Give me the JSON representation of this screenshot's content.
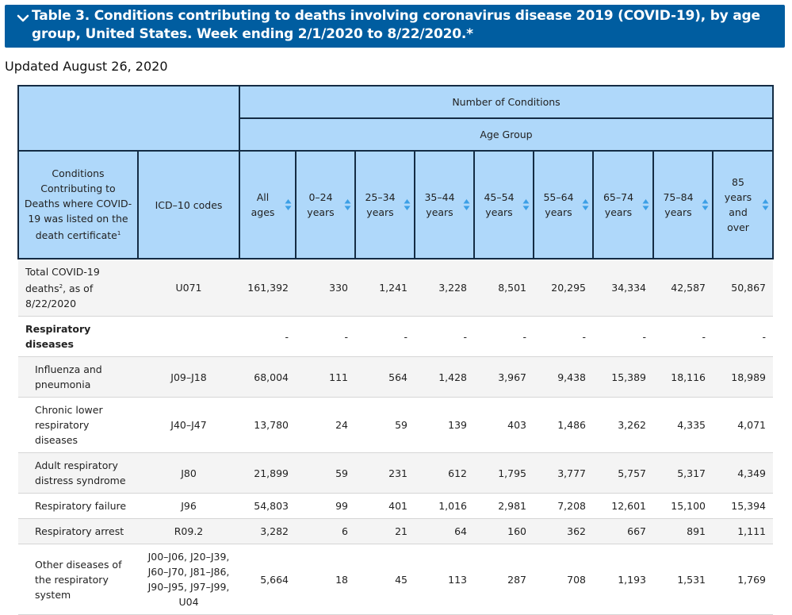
{
  "header": {
    "title": "Table 3. Conditions contributing to deaths involving coronavirus disease 2019 (COVID-19), by age group, United States. Week ending 2/1/2020 to 8/22/2020.*",
    "updated": "Updated August 26, 2020"
  },
  "table": {
    "group_header": "Number of Conditions",
    "subgroup_header": "Age Group",
    "col_condition": "Conditions Contributing to Deaths where COVID-19 was listed on the death certificate",
    "col_condition_sup": "1",
    "col_icd": "ICD–10 codes",
    "age_cols": [
      "All ages",
      "0–24 years",
      "25–34 years",
      "35–44 years",
      "45–54 years",
      "55–64 years",
      "65–74 years",
      "75–84 years",
      "85 years and over"
    ],
    "rows": [
      {
        "cond": "Total COVID-19 deaths",
        "sup": "2",
        "cond_suffix": ", as of 8/22/2020",
        "icd": "U071",
        "vals": [
          "161,392",
          "330",
          "1,241",
          "3,228",
          "8,501",
          "20,295",
          "34,334",
          "42,587",
          "50,867"
        ],
        "type": "total"
      },
      {
        "cond": "Respiratory diseases",
        "icd": "",
        "vals": [
          "-",
          "-",
          "-",
          "-",
          "-",
          "-",
          "-",
          "-",
          "-"
        ],
        "type": "group"
      },
      {
        "cond": "Influenza and pneumonia",
        "icd": "J09–J18",
        "vals": [
          "68,004",
          "111",
          "564",
          "1,428",
          "3,967",
          "9,438",
          "15,389",
          "18,116",
          "18,989"
        ],
        "type": "sub"
      },
      {
        "cond": "Chronic lower respiratory diseases",
        "icd": "J40–J47",
        "vals": [
          "13,780",
          "24",
          "59",
          "139",
          "403",
          "1,486",
          "3,262",
          "4,335",
          "4,071"
        ],
        "type": "sub"
      },
      {
        "cond": "Adult respiratory distress syndrome",
        "icd": "J80",
        "vals": [
          "21,899",
          "59",
          "231",
          "612",
          "1,795",
          "3,777",
          "5,757",
          "5,317",
          "4,349"
        ],
        "type": "sub"
      },
      {
        "cond": "Respiratory failure",
        "icd": "J96",
        "vals": [
          "54,803",
          "99",
          "401",
          "1,016",
          "2,981",
          "7,208",
          "12,601",
          "15,100",
          "15,394"
        ],
        "type": "sub"
      },
      {
        "cond": "Respiratory arrest",
        "icd": "R09.2",
        "vals": [
          "3,282",
          "6",
          "21",
          "64",
          "160",
          "362",
          "667",
          "891",
          "1,111"
        ],
        "type": "sub"
      },
      {
        "cond": "Other diseases of the respiratory system",
        "icd": "J00–J06, J20–J39, J60–J70, J81–J86, J90–J95, J97–J99, U04",
        "vals": [
          "5,664",
          "18",
          "45",
          "113",
          "287",
          "708",
          "1,193",
          "1,531",
          "1,769"
        ],
        "type": "sub"
      }
    ]
  },
  "icons": {
    "banner": "chevron-down-icon",
    "sort": "sort-arrows-icon"
  },
  "colors": {
    "banner_bg": "#005da0",
    "header_bg": "#afd8fa",
    "sort_icon": "#3b9fe6",
    "header_border": "#142c44"
  }
}
